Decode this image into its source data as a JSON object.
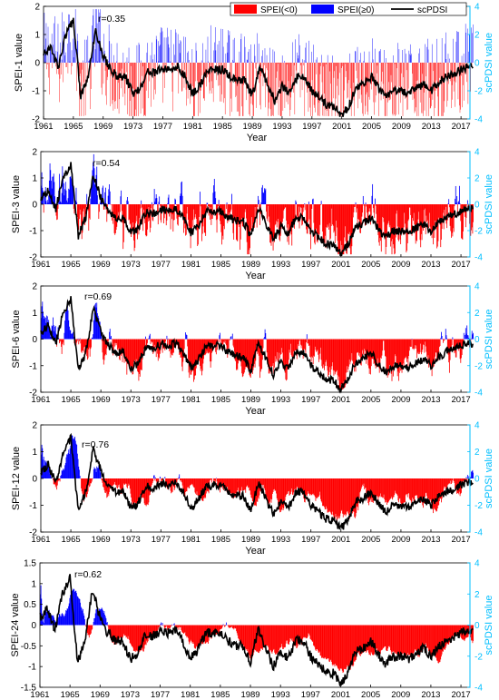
{
  "colors": {
    "negative": "#ff0000",
    "positive": "#0000ff",
    "scpdsi": "#000000",
    "right_axis": "#00bfff",
    "axis": "#000000"
  },
  "legend": {
    "neg_label": "SPEI(<0)",
    "pos_label": "SPEI(≥0)",
    "line_label": "scPDSI",
    "placement": "top-right of first panel"
  },
  "chart_data": [
    {
      "type": "bar+line",
      "ylabel": "SPEI-1 value",
      "ylabel2": "scPDSI value",
      "xlabel": "Year",
      "r_label": "r=0.35",
      "ylim": [
        -2,
        2
      ],
      "yticks": [
        -2,
        -1,
        0,
        1,
        2
      ],
      "y2lim": [
        -4,
        4
      ],
      "y2ticks": [
        -4,
        -2,
        0,
        2,
        4
      ],
      "xlim": [
        1961,
        2018.2
      ],
      "xticks": [
        "1961",
        "1965",
        "1969",
        "1973",
        "1977",
        "1981",
        "1985",
        "1989",
        "1993",
        "1997",
        "2001",
        "2005",
        "2009",
        "2013",
        "2017"
      ],
      "scpdsi_anchor_years": [
        1961,
        1962,
        1963,
        1964,
        1965,
        1966,
        1967,
        1968,
        1969,
        1970,
        1971,
        1972,
        1973,
        1974,
        1975,
        1976,
        1977,
        1978,
        1979,
        1980,
        1981,
        1982,
        1983,
        1984,
        1985,
        1986,
        1987,
        1988,
        1989,
        1990,
        1991,
        1992,
        1993,
        1994,
        1995,
        1996,
        1997,
        1998,
        1999,
        2000,
        2001,
        2002,
        2003,
        2004,
        2005,
        2006,
        2007,
        2008,
        2009,
        2010,
        2011,
        2012,
        2013,
        2014,
        2015,
        2016,
        2017,
        2018
      ],
      "scpdsi_anchors": [
        0.5,
        1.0,
        -0.3,
        2.0,
        3.0,
        -2.4,
        -1.0,
        2.3,
        0.5,
        -0.5,
        -1.0,
        -1.0,
        -2.2,
        -1.8,
        -0.6,
        -0.7,
        -0.4,
        -0.5,
        -0.3,
        -1.0,
        -2.2,
        -1.6,
        -0.6,
        -0.5,
        -0.5,
        -1.0,
        -1.3,
        -1.3,
        -2.4,
        -0.3,
        -1.5,
        -2.7,
        -1.7,
        -2.2,
        -1.0,
        -1.0,
        -2.0,
        -2.5,
        -3.0,
        -3.1,
        -3.8,
        -3.0,
        -1.7,
        -1.5,
        -1.0,
        -1.9,
        -2.5,
        -2.0,
        -2.0,
        -2.2,
        -1.8,
        -1.5,
        -2.0,
        -1.4,
        -1.0,
        -0.8,
        -0.5,
        -0.3
      ],
      "spei_note": "monthly bars, blue where SPEI>=0 and red where SPEI<0"
    },
    {
      "type": "bar+line",
      "ylabel": "SPEI-3 value",
      "ylabel2": "scPDSI value",
      "xlabel": "Year",
      "r_label": "r=0.54",
      "ylim": [
        -2,
        2
      ],
      "yticks": [
        -2,
        -1,
        0,
        1,
        2
      ],
      "y2lim": [
        -4,
        4
      ],
      "y2ticks": [
        -4,
        -2,
        0,
        2,
        4
      ],
      "xlim": [
        1961,
        2018.2
      ],
      "xticks": [
        "1961",
        "1965",
        "1969",
        "1973",
        "1977",
        "1981",
        "1985",
        "1989",
        "1993",
        "1997",
        "2001",
        "2005",
        "2009",
        "2013",
        "2017"
      ],
      "scpdsi_anchor_years": [
        1961,
        1962,
        1963,
        1964,
        1965,
        1966,
        1967,
        1968,
        1969,
        1970,
        1971,
        1972,
        1973,
        1974,
        1975,
        1976,
        1977,
        1978,
        1979,
        1980,
        1981,
        1982,
        1983,
        1984,
        1985,
        1986,
        1987,
        1988,
        1989,
        1990,
        1991,
        1992,
        1993,
        1994,
        1995,
        1996,
        1997,
        1998,
        1999,
        2000,
        2001,
        2002,
        2003,
        2004,
        2005,
        2006,
        2007,
        2008,
        2009,
        2010,
        2011,
        2012,
        2013,
        2014,
        2015,
        2016,
        2017,
        2018
      ],
      "scpdsi_anchors": [
        0.5,
        1.0,
        -0.3,
        2.0,
        3.0,
        -2.4,
        -1.0,
        2.3,
        0.5,
        -0.5,
        -1.0,
        -1.0,
        -2.2,
        -1.8,
        -0.6,
        -0.7,
        -0.4,
        -0.5,
        -0.3,
        -1.0,
        -2.2,
        -1.6,
        -0.6,
        -0.5,
        -0.5,
        -1.0,
        -1.3,
        -1.3,
        -2.4,
        -0.3,
        -1.5,
        -2.7,
        -1.7,
        -2.2,
        -1.0,
        -1.0,
        -2.0,
        -2.5,
        -3.0,
        -3.1,
        -3.8,
        -3.0,
        -1.7,
        -1.5,
        -1.0,
        -1.9,
        -2.5,
        -2.0,
        -2.0,
        -2.2,
        -1.8,
        -1.5,
        -2.0,
        -1.4,
        -1.0,
        -0.8,
        -0.5,
        -0.3
      ],
      "spei_note": "monthly bars, blue where SPEI>=0 and red where SPEI<0"
    },
    {
      "type": "bar+line",
      "ylabel": "SPEI-6 value",
      "ylabel2": "scPDSI value",
      "xlabel": "Year",
      "r_label": "r=0.69",
      "ylim": [
        -2,
        2
      ],
      "yticks": [
        -2,
        -1,
        0,
        1,
        2
      ],
      "y2lim": [
        -4,
        4
      ],
      "y2ticks": [
        -4,
        -2,
        0,
        2,
        4
      ],
      "xlim": [
        1961,
        2018.2
      ],
      "xticks": [
        "1961",
        "1965",
        "1969",
        "1973",
        "1977",
        "1981",
        "1985",
        "1989",
        "1993",
        "1997",
        "2001",
        "2005",
        "2009",
        "2013",
        "2017"
      ],
      "scpdsi_anchor_years": [
        1961,
        1962,
        1963,
        1964,
        1965,
        1966,
        1967,
        1968,
        1969,
        1970,
        1971,
        1972,
        1973,
        1974,
        1975,
        1976,
        1977,
        1978,
        1979,
        1980,
        1981,
        1982,
        1983,
        1984,
        1985,
        1986,
        1987,
        1988,
        1989,
        1990,
        1991,
        1992,
        1993,
        1994,
        1995,
        1996,
        1997,
        1998,
        1999,
        2000,
        2001,
        2002,
        2003,
        2004,
        2005,
        2006,
        2007,
        2008,
        2009,
        2010,
        2011,
        2012,
        2013,
        2014,
        2015,
        2016,
        2017,
        2018
      ],
      "scpdsi_anchors": [
        0.5,
        1.0,
        -0.3,
        2.0,
        3.0,
        -2.4,
        -1.0,
        2.3,
        0.5,
        -0.5,
        -1.0,
        -1.0,
        -2.2,
        -1.8,
        -0.6,
        -0.7,
        -0.4,
        -0.5,
        -0.3,
        -1.0,
        -2.2,
        -1.6,
        -0.6,
        -0.5,
        -0.5,
        -1.0,
        -1.3,
        -1.3,
        -2.4,
        -0.3,
        -1.5,
        -2.7,
        -1.7,
        -2.2,
        -1.0,
        -1.0,
        -2.0,
        -2.5,
        -3.0,
        -3.1,
        -3.8,
        -3.0,
        -1.7,
        -1.5,
        -1.0,
        -1.9,
        -2.5,
        -2.0,
        -2.0,
        -2.2,
        -1.8,
        -1.5,
        -2.0,
        -1.4,
        -1.0,
        -0.8,
        -0.5,
        -0.3
      ],
      "spei_note": "monthly bars, blue where SPEI>=0 and red where SPEI<0"
    },
    {
      "type": "bar+line",
      "ylabel": "SPEI-12 value",
      "ylabel2": "scPDSI value",
      "xlabel": "Year",
      "r_label": "r=0.76",
      "ylim": [
        -2,
        2
      ],
      "yticks": [
        -2,
        -1,
        0,
        1,
        2
      ],
      "y2lim": [
        -4,
        4
      ],
      "y2ticks": [
        -4,
        -2,
        0,
        2,
        4
      ],
      "xlim": [
        1961,
        2018.2
      ],
      "xticks": [
        "1961",
        "1965",
        "1969",
        "1973",
        "1977",
        "1981",
        "1985",
        "1989",
        "1993",
        "1997",
        "2001",
        "2005",
        "2009",
        "2013",
        "2017"
      ],
      "scpdsi_anchor_years": [
        1961,
        1962,
        1963,
        1964,
        1965,
        1966,
        1967,
        1968,
        1969,
        1970,
        1971,
        1972,
        1973,
        1974,
        1975,
        1976,
        1977,
        1978,
        1979,
        1980,
        1981,
        1982,
        1983,
        1984,
        1985,
        1986,
        1987,
        1988,
        1989,
        1990,
        1991,
        1992,
        1993,
        1994,
        1995,
        1996,
        1997,
        1998,
        1999,
        2000,
        2001,
        2002,
        2003,
        2004,
        2005,
        2006,
        2007,
        2008,
        2009,
        2010,
        2011,
        2012,
        2013,
        2014,
        2015,
        2016,
        2017,
        2018
      ],
      "scpdsi_anchors": [
        0.5,
        1.0,
        -0.3,
        2.0,
        3.0,
        -2.4,
        -1.0,
        2.3,
        0.5,
        -0.5,
        -1.0,
        -1.0,
        -2.2,
        -1.8,
        -0.6,
        -0.7,
        -0.4,
        -0.5,
        -0.3,
        -1.0,
        -2.2,
        -1.6,
        -0.6,
        -0.5,
        -0.5,
        -1.0,
        -1.3,
        -1.3,
        -2.4,
        -0.3,
        -1.5,
        -2.7,
        -1.7,
        -2.2,
        -1.0,
        -1.0,
        -2.0,
        -2.5,
        -3.0,
        -3.1,
        -3.8,
        -3.0,
        -1.7,
        -1.5,
        -1.0,
        -1.9,
        -2.5,
        -2.0,
        -2.0,
        -2.2,
        -1.8,
        -1.5,
        -2.0,
        -1.4,
        -1.0,
        -0.8,
        -0.5,
        -0.3
      ],
      "spei_note": "monthly bars, blue where SPEI>=0 and red where SPEI<0"
    },
    {
      "type": "bar+line",
      "ylabel": "SPEI-24 value",
      "ylabel2": "scPDSI value",
      "xlabel": "Year",
      "r_label": "r=0.62",
      "ylim": [
        -1.5,
        1.5
      ],
      "yticks": [
        -1.5,
        -1,
        -0.5,
        0,
        0.5,
        1,
        1.5
      ],
      "y2lim": [
        -4,
        4
      ],
      "y2ticks": [
        -4,
        -2,
        0,
        2,
        4
      ],
      "xlim": [
        1961,
        2018.2
      ],
      "xticks": [
        "1961",
        "1965",
        "1969",
        "1973",
        "1977",
        "1981",
        "1985",
        "1989",
        "1993",
        "1997",
        "2001",
        "2005",
        "2009",
        "2013",
        "2017"
      ],
      "scpdsi_anchor_years": [
        1961,
        1962,
        1963,
        1964,
        1965,
        1966,
        1967,
        1968,
        1969,
        1970,
        1971,
        1972,
        1973,
        1974,
        1975,
        1976,
        1977,
        1978,
        1979,
        1980,
        1981,
        1982,
        1983,
        1984,
        1985,
        1986,
        1987,
        1988,
        1989,
        1990,
        1991,
        1992,
        1993,
        1994,
        1995,
        1996,
        1997,
        1998,
        1999,
        2000,
        2001,
        2002,
        2003,
        2004,
        2005,
        2006,
        2007,
        2008,
        2009,
        2010,
        2011,
        2012,
        2013,
        2014,
        2015,
        2016,
        2017,
        2018
      ],
      "scpdsi_anchors": [
        0.5,
        1.0,
        -0.3,
        2.0,
        3.0,
        -2.4,
        -1.0,
        2.3,
        0.5,
        -0.5,
        -1.0,
        -1.0,
        -2.2,
        -1.8,
        -0.6,
        -0.7,
        -0.4,
        -0.5,
        -0.3,
        -1.0,
        -2.2,
        -1.6,
        -0.6,
        -0.5,
        -0.5,
        -1.0,
        -1.3,
        -1.3,
        -2.4,
        -0.3,
        -1.5,
        -2.7,
        -1.7,
        -2.2,
        -1.0,
        -1.0,
        -2.0,
        -2.5,
        -3.0,
        -3.1,
        -3.8,
        -3.0,
        -1.7,
        -1.5,
        -1.0,
        -1.9,
        -2.5,
        -2.0,
        -2.0,
        -2.2,
        -1.8,
        -1.5,
        -2.0,
        -1.4,
        -1.0,
        -0.8,
        -0.5,
        -0.3
      ],
      "spei_note": "monthly bars, blue where SPEI>=0 and red where SPEI<0"
    }
  ]
}
